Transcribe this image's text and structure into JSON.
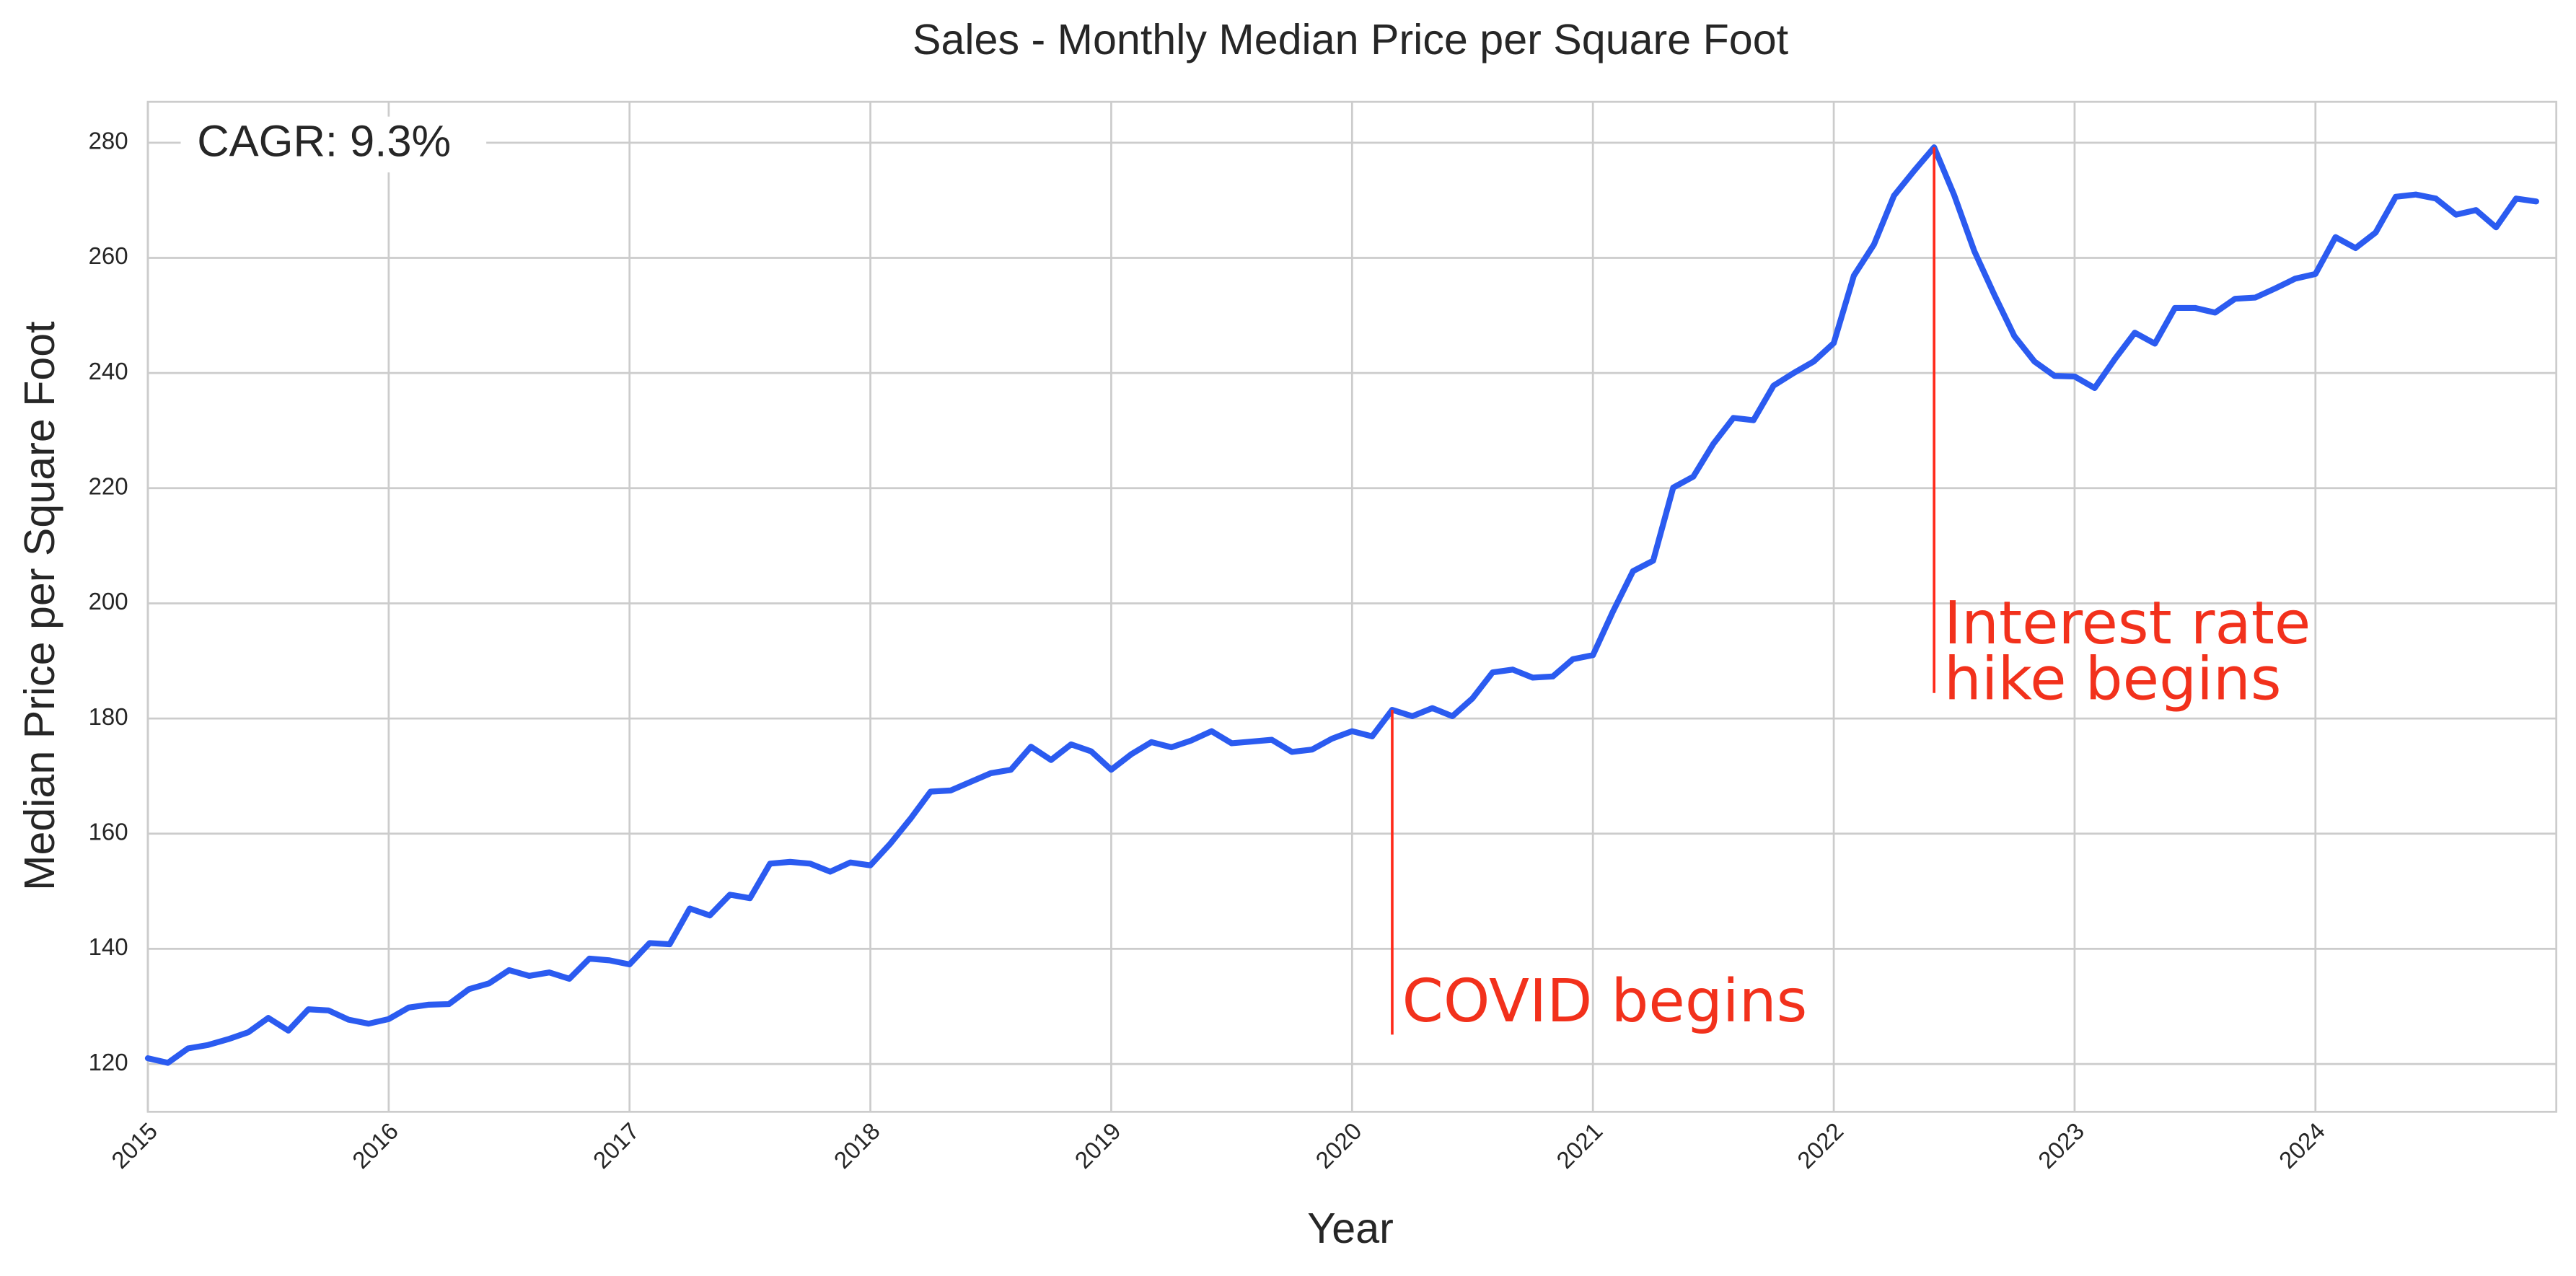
{
  "chart_data": {
    "type": "line",
    "title": "Sales - Monthly Median Price per Square Foot",
    "x_label": "Year",
    "y_label": "Median Price per Square Foot",
    "color": "#2b5bf0",
    "grid": true,
    "x": [
      "2015-01",
      "2015-02",
      "2015-03",
      "2015-04",
      "2015-05",
      "2015-06",
      "2015-07",
      "2015-08",
      "2015-09",
      "2015-10",
      "2015-11",
      "2015-12",
      "2016-01",
      "2016-02",
      "2016-03",
      "2016-04",
      "2016-05",
      "2016-06",
      "2016-07",
      "2016-08",
      "2016-09",
      "2016-10",
      "2016-11",
      "2016-12",
      "2017-01",
      "2017-02",
      "2017-03",
      "2017-04",
      "2017-05",
      "2017-06",
      "2017-07",
      "2017-08",
      "2017-09",
      "2017-10",
      "2017-11",
      "2017-12",
      "2018-01",
      "2018-02",
      "2018-03",
      "2018-04",
      "2018-05",
      "2018-06",
      "2018-07",
      "2018-08",
      "2018-09",
      "2018-10",
      "2018-11",
      "2018-12",
      "2019-01",
      "2019-02",
      "2019-03",
      "2019-04",
      "2019-05",
      "2019-06",
      "2019-07",
      "2019-08",
      "2019-09",
      "2019-10",
      "2019-11",
      "2019-12",
      "2020-01",
      "2020-02",
      "2020-03",
      "2020-04",
      "2020-05",
      "2020-06",
      "2020-07",
      "2020-08",
      "2020-09",
      "2020-10",
      "2020-11",
      "2020-12",
      "2021-01",
      "2021-02",
      "2021-03",
      "2021-04",
      "2021-05",
      "2021-06",
      "2021-07",
      "2021-08",
      "2021-09",
      "2021-10",
      "2021-11",
      "2021-12",
      "2022-01",
      "2022-02",
      "2022-03",
      "2022-04",
      "2022-05",
      "2022-06",
      "2022-07",
      "2022-08",
      "2022-09",
      "2022-10",
      "2022-11",
      "2022-12",
      "2023-01",
      "2023-02",
      "2023-03",
      "2023-04",
      "2023-05",
      "2023-06",
      "2023-07",
      "2023-08",
      "2023-09",
      "2023-10",
      "2023-11",
      "2023-12",
      "2024-01",
      "2024-02",
      "2024-03",
      "2024-04",
      "2024-05",
      "2024-06",
      "2024-07",
      "2024-08",
      "2024-09",
      "2024-10",
      "2024-11",
      "2024-12"
    ],
    "values": [
      121,
      120.2,
      122.7,
      123.3,
      124.3,
      125.5,
      128,
      125.8,
      129.5,
      129.3,
      127.7,
      127,
      127.8,
      129.8,
      130.3,
      130.4,
      133,
      134,
      136.3,
      135.3,
      135.9,
      134.8,
      138.3,
      138,
      137.3,
      141,
      140.8,
      147,
      145.8,
      149.4,
      148.8,
      154.8,
      155.1,
      154.8,
      153.4,
      155,
      154.5,
      158.3,
      162.6,
      167.3,
      167.5,
      169,
      170.5,
      171.1,
      175.1,
      172.8,
      175.5,
      174.3,
      171.1,
      173.8,
      175.9,
      175,
      176.2,
      177.8,
      175.7,
      176,
      176.3,
      174.2,
      174.6,
      176.5,
      177.8,
      176.9,
      181.5,
      180.4,
      181.8,
      180.4,
      183.5,
      188,
      188.5,
      187.1,
      187.3,
      190.3,
      191,
      198.6,
      205.6,
      207.4,
      220.1,
      222,
      227.7,
      232.2,
      231.8,
      237.8,
      240,
      242,
      245.2,
      256.9,
      262.3,
      270.8,
      275.1,
      279.2,
      270.9,
      261.2,
      253.6,
      246.4,
      242,
      239.5,
      239.4,
      237.4,
      242.4,
      247,
      245.1,
      251.3,
      251.3,
      250.5,
      252.9,
      253.1,
      254.7,
      256.4,
      257.2,
      263.6,
      261.7,
      264.4,
      270.6,
      271,
      270.3,
      267.5,
      268.3,
      265.3,
      270.3,
      269.8
    ],
    "xlim": [
      2015,
      2025
    ],
    "xticks": [
      2015,
      2016,
      2017,
      2018,
      2019,
      2020,
      2021,
      2022,
      2023,
      2024
    ],
    "ylim": [
      111.7,
      287.1
    ],
    "yticks": [
      120,
      140,
      160,
      180,
      200,
      220,
      240,
      260,
      280
    ],
    "cagr_label": "CAGR: 9.3%",
    "annotations": [
      {
        "text": [
          "COVID begins"
        ],
        "x": "2020-03",
        "color": "#ff2a1a"
      },
      {
        "text": [
          "Interest rate",
          "hike begins"
        ],
        "x": "2022-06",
        "color": "#ff2a1a"
      }
    ]
  }
}
